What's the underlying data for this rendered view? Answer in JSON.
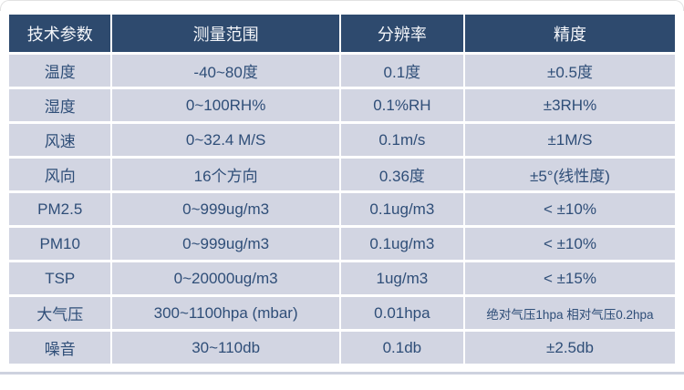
{
  "colors": {
    "header_bg": "#2e4a6e",
    "header_text": "#f4f6fa",
    "row_bg": "#d2d5e2",
    "cell_text": "#2f4e78",
    "grid_divider": "#ffffff",
    "bottom_line": "#ced2df"
  },
  "table": {
    "headers": [
      "技术参数",
      "测量范围",
      "分辨率",
      "精度"
    ],
    "rows": [
      {
        "cells": [
          "温度",
          "-40~80度",
          "0.1度",
          "±0.5度"
        ]
      },
      {
        "cells": [
          "湿度",
          "0~100RH%",
          "0.1%RH",
          "±3RH%"
        ]
      },
      {
        "cells": [
          "风速",
          "0~32.4 M/S",
          "0.1m/s",
          "±1M/S"
        ]
      },
      {
        "cells": [
          "风向",
          "16个方向",
          "0.36度",
          "±5°(线性度)"
        ]
      },
      {
        "cells": [
          "PM2.5",
          "0~999ug/m3",
          "0.1ug/m3",
          "< ±10%"
        ]
      },
      {
        "cells": [
          "PM10",
          "0~999ug/m3",
          "0.1ug/m3",
          "< ±10%"
        ]
      },
      {
        "cells": [
          "TSP",
          "0~20000ug/m3",
          "1ug/m3",
          "< ±15%"
        ]
      },
      {
        "cells": [
          "大气压",
          "300~1100hpa (mbar)",
          "0.01hpa",
          "绝对气压1hpa 相对气压0.2hpa"
        ]
      },
      {
        "cells": [
          "噪音",
          "30~110db",
          "0.1db",
          "±2.5db"
        ]
      }
    ],
    "small_text_cells": [
      [
        7,
        3
      ]
    ]
  }
}
